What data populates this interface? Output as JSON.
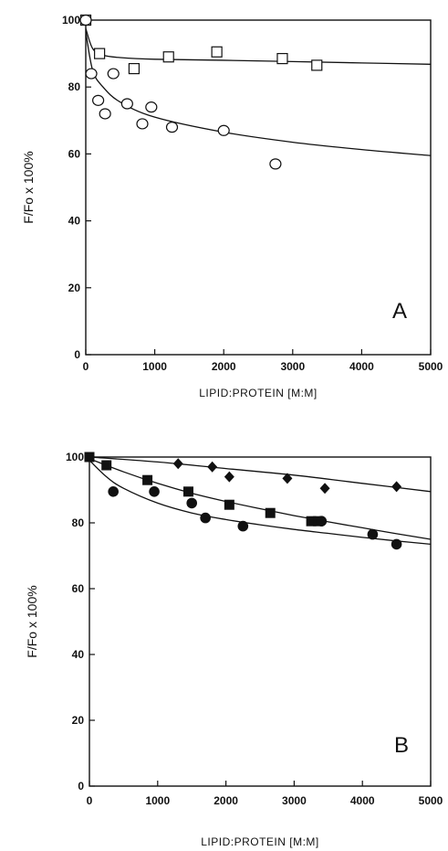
{
  "chart_data": [
    {
      "type": "scatter",
      "panel_label": "A",
      "xlabel": "LIPID:PROTEIN [M:M]",
      "ylabel": "F/Fo x 100%",
      "xlim": [
        0,
        5000
      ],
      "ylim": [
        0,
        100
      ],
      "xticks": [
        "0",
        "1000",
        "2000",
        "3000",
        "4000",
        "5000"
      ],
      "yticks": [
        "0",
        "20",
        "40",
        "60",
        "80",
        "100"
      ],
      "series": [
        {
          "marker": "open-square",
          "x": [
            0,
            200,
            700,
            1200,
            1900,
            2850,
            3350
          ],
          "y": [
            100,
            90,
            85.5,
            89,
            90.5,
            88.5,
            86.5
          ],
          "fit_curve": {
            "x": [
              0,
              100,
              250,
              500,
              1000,
              2000,
              3000,
              4000,
              5000
            ],
            "y": [
              97.5,
              91.5,
              89.5,
              88.8,
              88.3,
              88,
              87.6,
              87.2,
              86.8
            ]
          }
        },
        {
          "marker": "open-circle",
          "x": [
            0,
            80,
            180,
            280,
            400,
            600,
            820,
            950,
            1250,
            2000,
            2750
          ],
          "y": [
            100,
            84,
            76,
            72,
            84,
            75,
            69,
            74,
            68,
            67,
            57
          ],
          "fit_curve": {
            "x": [
              0,
              100,
              250,
              500,
              1000,
              2000,
              3000,
              4000,
              5000
            ],
            "y": [
              96.5,
              85,
              80,
              75.5,
              71,
              66.5,
              63.5,
              61.3,
              59.5
            ]
          }
        }
      ]
    },
    {
      "type": "scatter",
      "panel_label": "B",
      "xlabel": "LIPID:PROTEIN [M:M]",
      "ylabel": "F/Fo x 100%",
      "xlim": [
        0,
        5000
      ],
      "ylim": [
        0,
        100
      ],
      "xticks": [
        "0",
        "1000",
        "2000",
        "3000",
        "4000",
        "5000"
      ],
      "yticks": [
        "0",
        "20",
        "40",
        "60",
        "80",
        "100"
      ],
      "series": [
        {
          "marker": "filled-diamond",
          "x": [
            1300,
            1800,
            2050,
            2900,
            3450,
            4500
          ],
          "y": [
            98,
            97,
            94,
            93.5,
            90.5,
            91
          ],
          "fit_curve": {
            "x": [
              0,
              1000,
              2000,
              3000,
              4000,
              5000
            ],
            "y": [
              100,
              98.5,
              96.5,
              94.5,
              92,
              89.5
            ]
          }
        },
        {
          "marker": "filled-square",
          "x": [
            0,
            250,
            850,
            1450,
            2050,
            2650,
            3250,
            3350
          ],
          "y": [
            100,
            97.5,
            93,
            89.5,
            85.5,
            83,
            80.5,
            80.5
          ],
          "fit_curve": {
            "x": [
              0,
              500,
              1000,
              1500,
              2000,
              2500,
              3000,
              3500,
              4000,
              4500,
              5000
            ],
            "y": [
              99.5,
              95.5,
              92,
              89,
              86.5,
              84.3,
              82.2,
              80.3,
              78.5,
              76.7,
              75
            ]
          }
        },
        {
          "marker": "filled-circle",
          "x": [
            350,
            950,
            1500,
            1700,
            2250,
            3400,
            4150,
            4500
          ],
          "y": [
            89.5,
            89.5,
            86,
            81.5,
            79,
            80.5,
            76.5,
            73.5
          ],
          "fit_curve": {
            "x": [
              0,
              250,
              500,
              1000,
              1500,
              2000,
              2500,
              3000,
              3500,
              4000,
              4500,
              5000
            ],
            "y": [
              99,
              94,
              90.5,
              86,
              83,
              81,
              79.4,
              78,
              76.8,
              75.6,
              74.5,
              73.5
            ]
          }
        }
      ]
    }
  ]
}
